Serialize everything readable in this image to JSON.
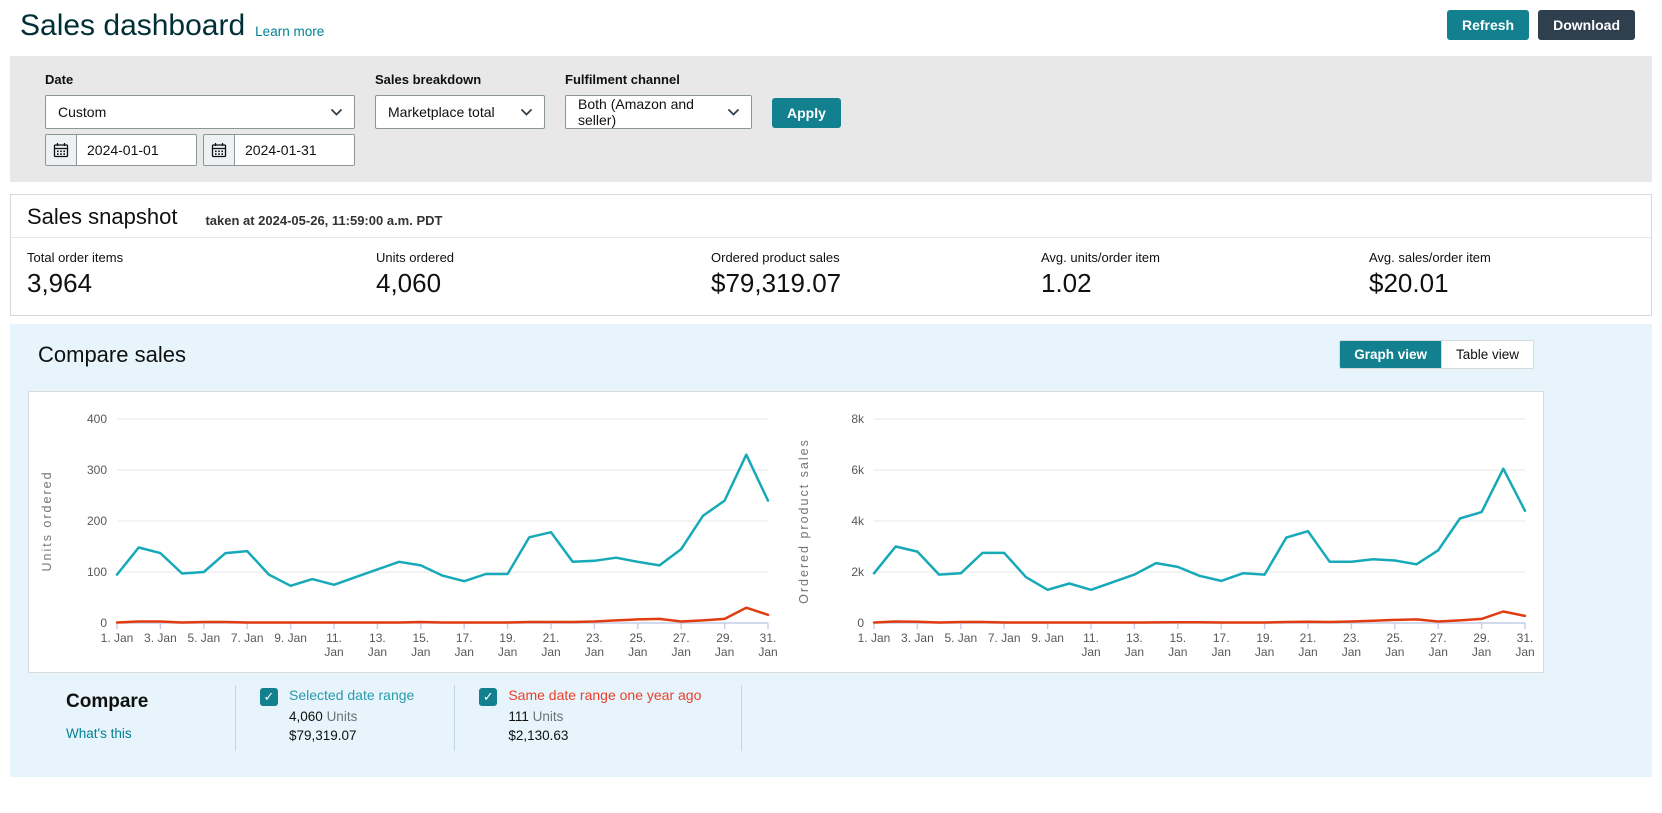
{
  "header": {
    "title": "Sales dashboard",
    "learn_more": "Learn more",
    "refresh_label": "Refresh",
    "download_label": "Download"
  },
  "filters": {
    "date_label": "Date",
    "date_value": "Custom",
    "date_from": "2024-01-01",
    "date_to": "2024-01-31",
    "sales_breakdown_label": "Sales breakdown",
    "sales_breakdown_value": "Marketplace total",
    "fulfilment_label": "Fulfilment channel",
    "fulfilment_value": "Both (Amazon and seller)",
    "apply_label": "Apply"
  },
  "snapshot": {
    "title": "Sales snapshot",
    "taken_at": "taken at 2024-05-26, 11:59:00 a.m. PDT",
    "stats": [
      {
        "label": "Total order items",
        "value": "3,964"
      },
      {
        "label": "Units ordered",
        "value": "4,060"
      },
      {
        "label": "Ordered product sales",
        "value": "$79,319.07"
      },
      {
        "label": "Avg. units/order item",
        "value": "1.02"
      },
      {
        "label": "Avg. sales/order item",
        "value": "$20.01"
      }
    ]
  },
  "compare_sales": {
    "title": "Compare sales",
    "graph_view_label": "Graph view",
    "table_view_label": "Table view",
    "compare": {
      "title": "Compare",
      "whats_this": "What's this",
      "items": [
        {
          "label": "Selected date range",
          "label_color": "#2b9aad",
          "units": "4,060",
          "units_suffix": "Units",
          "sales": "$79,319.07",
          "checked": true,
          "check_glyph": "✓"
        },
        {
          "label": "Same date range one year ago",
          "label_color": "#e8402a",
          "units": "111",
          "units_suffix": "Units",
          "sales": "$2,130.63",
          "checked": true,
          "check_glyph": "✓"
        }
      ]
    }
  },
  "colors": {
    "accent_teal": "#12808f",
    "link_teal": "#008296",
    "dark_button": "#2f3f4e",
    "series_current": "#16a9b8",
    "series_year_ago": "#e13c10",
    "gridline": "#e7e7e7",
    "axis_line": "#c3cde8",
    "tick_text": "#565959"
  },
  "chart_data": [
    {
      "type": "line",
      "ylabel": "Units ordered",
      "month": "Jan",
      "xticks": [
        1,
        3,
        5,
        7,
        9,
        11,
        13,
        15,
        17,
        19,
        21,
        23,
        25,
        27,
        29,
        31
      ],
      "ylim": [
        0,
        400
      ],
      "yticks": [
        0,
        100,
        200,
        300,
        400
      ],
      "ytick_labels": [
        "0",
        "100",
        "200",
        "300",
        "400"
      ],
      "days": [
        1,
        2,
        3,
        4,
        5,
        6,
        7,
        8,
        9,
        10,
        11,
        12,
        13,
        14,
        15,
        16,
        17,
        18,
        19,
        20,
        21,
        22,
        23,
        24,
        25,
        26,
        27,
        28,
        29,
        30,
        31
      ],
      "series": [
        {
          "name": "Selected date range",
          "color": "#16a9b8",
          "values": [
            95,
            148,
            137,
            97,
            100,
            137,
            141,
            95,
            73,
            86,
            75,
            90,
            105,
            120,
            113,
            93,
            82,
            96,
            96,
            168,
            178,
            120,
            122,
            128,
            120,
            113,
            145,
            210,
            240,
            330,
            240
          ]
        },
        {
          "name": "Same date range one year ago",
          "color": "#e13c10",
          "values": [
            1,
            3,
            3,
            1,
            2,
            2,
            1,
            1,
            1,
            1,
            1,
            1,
            1,
            1,
            2,
            1,
            1,
            1,
            1,
            2,
            2,
            2,
            3,
            5,
            7,
            8,
            3,
            5,
            8,
            30,
            16
          ]
        }
      ]
    },
    {
      "type": "line",
      "ylabel": "Ordered product sales",
      "month": "Jan",
      "xticks": [
        1,
        3,
        5,
        7,
        9,
        11,
        13,
        15,
        17,
        19,
        21,
        23,
        25,
        27,
        29,
        31
      ],
      "ylim": [
        0,
        8000
      ],
      "yticks": [
        0,
        2000,
        4000,
        6000,
        8000
      ],
      "ytick_labels": [
        "0",
        "2k",
        "4k",
        "6k",
        "8k"
      ],
      "days": [
        1,
        2,
        3,
        4,
        5,
        6,
        7,
        8,
        9,
        10,
        11,
        12,
        13,
        14,
        15,
        16,
        17,
        18,
        19,
        20,
        21,
        22,
        23,
        24,
        25,
        26,
        27,
        28,
        29,
        30,
        31
      ],
      "series": [
        {
          "name": "Selected date range",
          "color": "#16a9b8",
          "values": [
            1950,
            3000,
            2800,
            1900,
            1950,
            2750,
            2750,
            1800,
            1300,
            1550,
            1300,
            1600,
            1900,
            2350,
            2200,
            1850,
            1650,
            1950,
            1900,
            3350,
            3600,
            2400,
            2400,
            2500,
            2450,
            2300,
            2850,
            4100,
            4350,
            6050,
            4400
          ]
        },
        {
          "name": "Same date range one year ago",
          "color": "#e13c10",
          "values": [
            20,
            60,
            50,
            20,
            40,
            40,
            20,
            20,
            20,
            20,
            20,
            20,
            20,
            25,
            30,
            30,
            20,
            20,
            20,
            40,
            50,
            40,
            60,
            90,
            120,
            140,
            60,
            100,
            160,
            450,
            280
          ]
        }
      ]
    }
  ]
}
